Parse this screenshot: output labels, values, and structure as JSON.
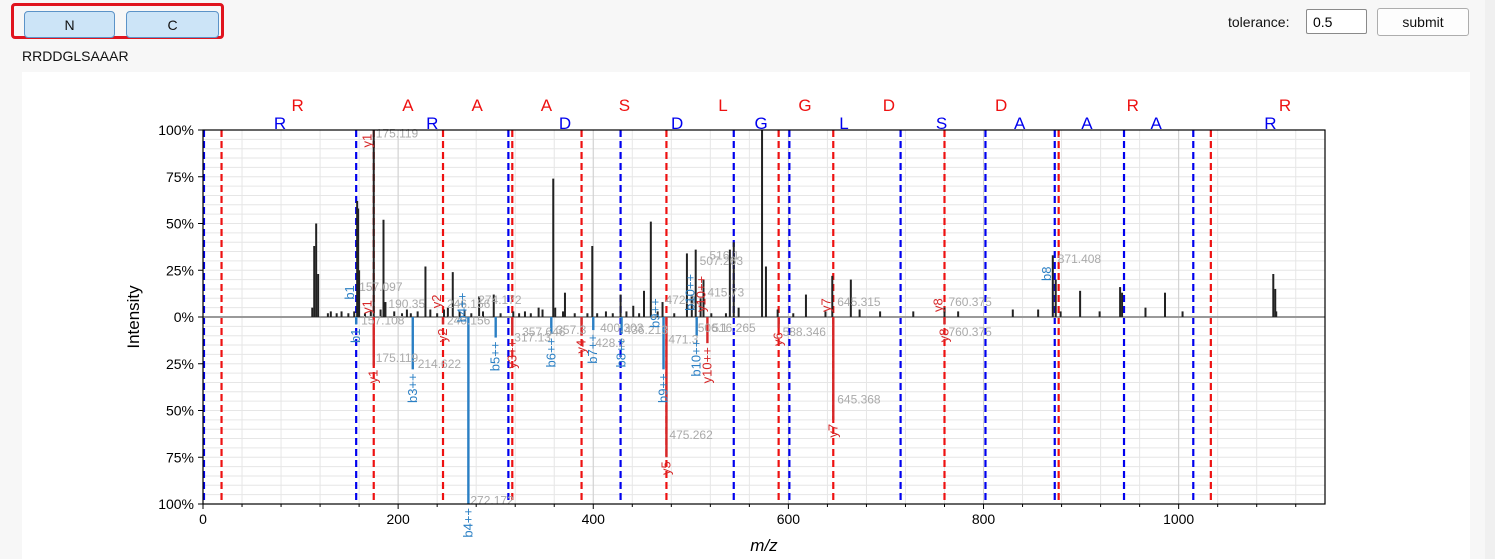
{
  "toolbar": {
    "n_label": "N",
    "c_label": "C",
    "tolerance_label": "tolerance:",
    "tolerance_value": "0.5",
    "submit_label": "submit"
  },
  "sequence": "RRDDGLSAAAR",
  "colors": {
    "n_ions": "#0000ee",
    "c_ions": "#ee1111",
    "b_peaks": "#2a7fc4",
    "y_peaks": "#d62728",
    "peaks": "#222222",
    "annotation_text": "#aaaaaa"
  },
  "chart_data": {
    "type": "bar",
    "xlabel": "m/z",
    "ylabel": "Intensity",
    "xlim": [
      0,
      1150
    ],
    "ylim": [
      -100,
      100
    ],
    "x_ticks": [
      0,
      200,
      400,
      600,
      800,
      1000
    ],
    "y_tick_labels": [
      "100%",
      "75%",
      "50%",
      "25%",
      "0%",
      "25%",
      "50%",
      "75%",
      "100%"
    ],
    "grid": true,
    "n_term_residues": [
      {
        "label": "R",
        "x": 79
      },
      {
        "label": "R",
        "x": 235
      },
      {
        "label": "D",
        "x": 371
      },
      {
        "label": "D",
        "x": 486
      },
      {
        "label": "G",
        "x": 572
      },
      {
        "label": "L",
        "x": 657
      },
      {
        "label": "S",
        "x": 757
      },
      {
        "label": "A",
        "x": 837
      },
      {
        "label": "A",
        "x": 906
      },
      {
        "label": "A",
        "x": 977
      },
      {
        "label": "R",
        "x": 1094
      }
    ],
    "c_term_residues": [
      {
        "label": "R",
        "x": 97
      },
      {
        "label": "A",
        "x": 210
      },
      {
        "label": "A",
        "x": 281
      },
      {
        "label": "A",
        "x": 352
      },
      {
        "label": "S",
        "x": 432
      },
      {
        "label": "L",
        "x": 533
      },
      {
        "label": "G",
        "x": 617
      },
      {
        "label": "D",
        "x": 703
      },
      {
        "label": "D",
        "x": 818
      },
      {
        "label": "R",
        "x": 953
      },
      {
        "label": "R",
        "x": 1109
      }
    ],
    "n_ion_lines": [
      1,
      157,
      313,
      428,
      544,
      601,
      715,
      802,
      873,
      944,
      1015
    ],
    "c_ion_lines": [
      19,
      175,
      246,
      317,
      388,
      475,
      590,
      646,
      760,
      877,
      1033
    ],
    "top_peaks": [
      {
        "x": 112,
        "y": 5
      },
      {
        "x": 114,
        "y": 38
      },
      {
        "x": 116,
        "y": 50
      },
      {
        "x": 118,
        "y": 23
      },
      {
        "x": 128,
        "y": 2
      },
      {
        "x": 131,
        "y": 3
      },
      {
        "x": 137,
        "y": 2
      },
      {
        "x": 142,
        "y": 3
      },
      {
        "x": 149,
        "y": 2
      },
      {
        "x": 155,
        "y": 3
      },
      {
        "x": 158,
        "y": 62
      },
      {
        "x": 159,
        "y": 58
      },
      {
        "x": 160,
        "y": 25
      },
      {
        "x": 166,
        "y": 2
      },
      {
        "x": 172,
        "y": 3
      },
      {
        "x": 175,
        "y": 100
      },
      {
        "x": 182,
        "y": 4
      },
      {
        "x": 185,
        "y": 52
      },
      {
        "x": 187,
        "y": 8
      },
      {
        "x": 196,
        "y": 3
      },
      {
        "x": 204,
        "y": 2
      },
      {
        "x": 209,
        "y": 4
      },
      {
        "x": 213,
        "y": 2
      },
      {
        "x": 220,
        "y": 3
      },
      {
        "x": 228,
        "y": 27
      },
      {
        "x": 233,
        "y": 4
      },
      {
        "x": 240,
        "y": 2
      },
      {
        "x": 247,
        "y": 4
      },
      {
        "x": 251,
        "y": 5
      },
      {
        "x": 256,
        "y": 24
      },
      {
        "x": 263,
        "y": 3
      },
      {
        "x": 268,
        "y": 4
      },
      {
        "x": 275,
        "y": 2
      },
      {
        "x": 283,
        "y": 11
      },
      {
        "x": 287,
        "y": 3
      },
      {
        "x": 298,
        "y": 12
      },
      {
        "x": 305,
        "y": 2
      },
      {
        "x": 318,
        "y": 3
      },
      {
        "x": 324,
        "y": 2
      },
      {
        "x": 330,
        "y": 3
      },
      {
        "x": 336,
        "y": 2
      },
      {
        "x": 344,
        "y": 5
      },
      {
        "x": 348,
        "y": 4
      },
      {
        "x": 359,
        "y": 74
      },
      {
        "x": 361,
        "y": 5
      },
      {
        "x": 369,
        "y": 3
      },
      {
        "x": 371,
        "y": 13
      },
      {
        "x": 381,
        "y": 2
      },
      {
        "x": 394,
        "y": 2
      },
      {
        "x": 399,
        "y": 38
      },
      {
        "x": 404,
        "y": 2
      },
      {
        "x": 413,
        "y": 3
      },
      {
        "x": 420,
        "y": 2
      },
      {
        "x": 428,
        "y": 12
      },
      {
        "x": 434,
        "y": 3
      },
      {
        "x": 441,
        "y": 6
      },
      {
        "x": 447,
        "y": 2
      },
      {
        "x": 452,
        "y": 14
      },
      {
        "x": 459,
        "y": 51
      },
      {
        "x": 466,
        "y": 3
      },
      {
        "x": 471,
        "y": 8
      },
      {
        "x": 483,
        "y": 2
      },
      {
        "x": 496,
        "y": 34
      },
      {
        "x": 501,
        "y": 12
      },
      {
        "x": 505,
        "y": 36
      },
      {
        "x": 510,
        "y": 10
      },
      {
        "x": 513,
        "y": 20
      },
      {
        "x": 521,
        "y": 2
      },
      {
        "x": 536,
        "y": 2
      },
      {
        "x": 540,
        "y": 36
      },
      {
        "x": 544,
        "y": 40
      },
      {
        "x": 549,
        "y": 5
      },
      {
        "x": 573,
        "y": 100
      },
      {
        "x": 577,
        "y": 27
      },
      {
        "x": 589,
        "y": 4
      },
      {
        "x": 605,
        "y": 2
      },
      {
        "x": 618,
        "y": 12
      },
      {
        "x": 638,
        "y": 3
      },
      {
        "x": 645,
        "y": 22
      },
      {
        "x": 664,
        "y": 20
      },
      {
        "x": 673,
        "y": 4
      },
      {
        "x": 694,
        "y": 3
      },
      {
        "x": 728,
        "y": 3
      },
      {
        "x": 760,
        "y": 5
      },
      {
        "x": 774,
        "y": 3
      },
      {
        "x": 830,
        "y": 4
      },
      {
        "x": 856,
        "y": 4
      },
      {
        "x": 871,
        "y": 33
      },
      {
        "x": 874,
        "y": 20
      },
      {
        "x": 879,
        "y": 3
      },
      {
        "x": 899,
        "y": 14
      },
      {
        "x": 919,
        "y": 3
      },
      {
        "x": 940,
        "y": 16
      },
      {
        "x": 942,
        "y": 13
      },
      {
        "x": 966,
        "y": 5
      },
      {
        "x": 986,
        "y": 13
      },
      {
        "x": 1004,
        "y": 3
      },
      {
        "x": 1097,
        "y": 23
      },
      {
        "x": 1099,
        "y": 15
      },
      {
        "x": 1100,
        "y": 3
      }
    ],
    "top_ion_labels": [
      {
        "label": "b1",
        "x": 157,
        "y": 17,
        "color": "b"
      },
      {
        "label": "y1",
        "x": 175,
        "y": 98,
        "color": "y"
      },
      {
        "label": "y1",
        "x": 175,
        "y": 9,
        "color": "y"
      },
      {
        "label": "y2",
        "x": 246,
        "y": 12,
        "color": "y"
      },
      {
        "label": "b4++",
        "x": 272,
        "y": 13,
        "color": "b"
      },
      {
        "label": "b9++",
        "x": 470,
        "y": 10,
        "color": "b"
      },
      {
        "label": "b10++",
        "x": 506,
        "y": 23,
        "color": "b"
      },
      {
        "label": "y10++",
        "x": 517,
        "y": 22,
        "color": "y"
      },
      {
        "label": "y7",
        "x": 645,
        "y": 10,
        "color": "y"
      },
      {
        "label": "y8",
        "x": 760,
        "y": 10,
        "color": "y"
      },
      {
        "label": "b8",
        "x": 871,
        "y": 27,
        "color": "b"
      }
    ],
    "top_mz_labels": [
      {
        "text": "175.119",
        "x": 175,
        "y": 98
      },
      {
        "text": "157.097",
        "x": 158,
        "y": 16
      },
      {
        "text": "190.35",
        "x": 188,
        "y": 7
      },
      {
        "text": "246.156",
        "x": 248,
        "y": 7
      },
      {
        "text": "274.172",
        "x": 280,
        "y": 9
      },
      {
        "text": "472.6",
        "x": 472,
        "y": 9
      },
      {
        "text": "516.1",
        "x": 517,
        "y": 33
      },
      {
        "text": "507.263",
        "x": 507,
        "y": 30
      },
      {
        "text": "415.73",
        "x": 515,
        "y": 13
      },
      {
        "text": "645.315",
        "x": 648,
        "y": 8
      },
      {
        "text": "760.375",
        "x": 762,
        "y": 8
      },
      {
        "text": "871.408",
        "x": 874,
        "y": 31
      }
    ],
    "bottom_b_peaks": [
      {
        "label": "b1",
        "x": 157,
        "y": -4
      },
      {
        "label": "b3++",
        "x": 215,
        "y": -28
      },
      {
        "label": "b4++",
        "x": 272,
        "y": -100
      },
      {
        "label": "b5++",
        "x": 300,
        "y": -11
      },
      {
        "label": "b6++",
        "x": 357,
        "y": -9
      },
      {
        "label": "b7++",
        "x": 400,
        "y": -7
      },
      {
        "label": "b8++",
        "x": 429,
        "y": -9
      },
      {
        "label": "b9++",
        "x": 472,
        "y": -28
      },
      {
        "label": "b10++",
        "x": 506,
        "y": -10
      }
    ],
    "bottom_y_peaks": [
      {
        "label": "y1",
        "x": 175,
        "y": -26
      },
      {
        "label": "y2",
        "x": 246,
        "y": -4
      },
      {
        "label": "y3++",
        "x": 317,
        "y": -10
      },
      {
        "label": "y4",
        "x": 388,
        "y": -10
      },
      {
        "label": "y5",
        "x": 475,
        "y": -75
      },
      {
        "label": "y10++",
        "x": 517,
        "y": -14
      },
      {
        "label": "y6",
        "x": 590,
        "y": -6
      },
      {
        "label": "y7",
        "x": 646,
        "y": -55
      },
      {
        "label": "y8",
        "x": 760,
        "y": -4
      }
    ],
    "bottom_mz_labels": [
      {
        "text": "157.108",
        "x": 160,
        "y": -2
      },
      {
        "text": "175.119",
        "x": 175,
        "y": -22
      },
      {
        "text": "214.622",
        "x": 218,
        "y": -25
      },
      {
        "text": "246.156",
        "x": 248,
        "y": -2
      },
      {
        "text": "272.172",
        "x": 272,
        "y": -98
      },
      {
        "text": "317.13",
        "x": 317,
        "y": -11
      },
      {
        "text": "357.646",
        "x": 325,
        "y": -8
      },
      {
        "text": "357.3",
        "x": 360,
        "y": -7
      },
      {
        "text": "400.303",
        "x": 405,
        "y": -6
      },
      {
        "text": "428.2",
        "x": 400,
        "y": -14
      },
      {
        "text": "436.213",
        "x": 430,
        "y": -7
      },
      {
        "text": "471.3",
        "x": 475,
        "y": -12
      },
      {
        "text": "475.262",
        "x": 476,
        "y": -63
      },
      {
        "text": "506.1",
        "x": 505,
        "y": -6
      },
      {
        "text": "516.265",
        "x": 520,
        "y": -6
      },
      {
        "text": "588.346",
        "x": 592,
        "y": -8
      },
      {
        "text": "645.368",
        "x": 648,
        "y": -44
      },
      {
        "text": "760.375",
        "x": 762,
        "y": -8
      }
    ]
  }
}
